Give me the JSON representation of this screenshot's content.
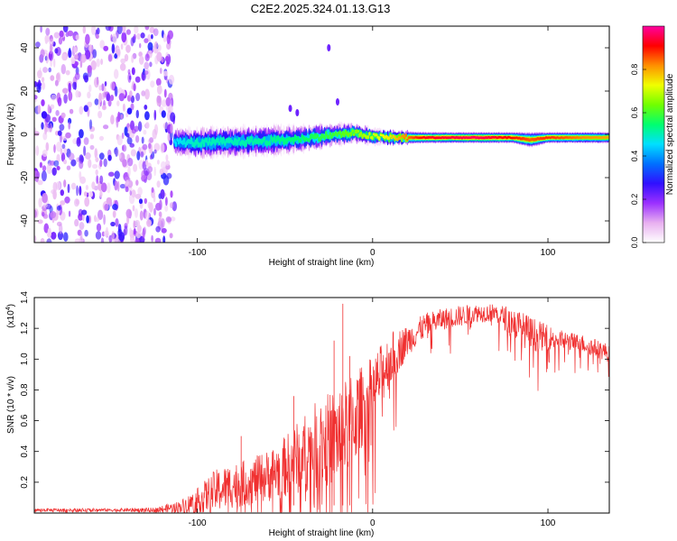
{
  "title": "C2E2.2025.324.01.13.G13",
  "chart_data": [
    {
      "type": "heatmap",
      "name": "spectrogram",
      "xlabel": "Height of straight line (km)",
      "ylabel": "Frequency (Hz)",
      "xlim": [
        -193,
        135
      ],
      "ylim": [
        -50,
        50
      ],
      "xticks": [
        -100,
        0,
        100
      ],
      "xtick_labels": [
        "-100",
        "0",
        "100"
      ],
      "yticks": [
        -40,
        -20,
        0,
        20,
        40
      ],
      "ytick_labels": [
        "-40",
        "-20",
        "0",
        "20",
        "40"
      ],
      "colorbar": {
        "label": "Normalized spectral amplitude",
        "range": [
          0,
          1
        ],
        "ticks": [
          0.0,
          0.2,
          0.4,
          0.6,
          0.8
        ],
        "tick_labels": [
          "0.0",
          "0.2",
          "0.4",
          "0.6",
          "0.8"
        ],
        "colors": [
          "#ffffff",
          "#e8b0f0",
          "#9b30ff",
          "#3010ff",
          "#0070ff",
          "#00e0ff",
          "#00ff70",
          "#70ff00",
          "#f0ff00",
          "#ff9000",
          "#ff0000",
          "#ff00a0"
        ]
      },
      "noise_region": {
        "x": [
          -193,
          -113
        ],
        "y": [
          -50,
          50
        ],
        "amplitude": [
          0.05,
          0.3
        ]
      },
      "signal_track": [
        {
          "x": -113,
          "f": -3.5,
          "width": 3.0,
          "amp": 0.45
        },
        {
          "x": -100,
          "f": -4.0,
          "width": 3.5,
          "amp": 0.5
        },
        {
          "x": -80,
          "f": -3.5,
          "width": 3.5,
          "amp": 0.5
        },
        {
          "x": -60,
          "f": -3.0,
          "width": 3.5,
          "amp": 0.52
        },
        {
          "x": -40,
          "f": -2.0,
          "width": 3.0,
          "amp": 0.55
        },
        {
          "x": -20,
          "f": 0.0,
          "width": 2.5,
          "amp": 0.6
        },
        {
          "x": -10,
          "f": 0.5,
          "width": 2.2,
          "amp": 0.65
        },
        {
          "x": 0,
          "f": -1.0,
          "width": 2.0,
          "amp": 0.7
        },
        {
          "x": 10,
          "f": -1.5,
          "width": 1.8,
          "amp": 0.75
        },
        {
          "x": 30,
          "f": -1.5,
          "width": 1.5,
          "amp": 0.92
        },
        {
          "x": 60,
          "f": -1.5,
          "width": 1.5,
          "amp": 0.96
        },
        {
          "x": 80,
          "f": -1.5,
          "width": 1.5,
          "amp": 0.9
        },
        {
          "x": 90,
          "f": -2.5,
          "width": 2.0,
          "amp": 0.85
        },
        {
          "x": 100,
          "f": -1.5,
          "width": 1.5,
          "amp": 0.88
        },
        {
          "x": 120,
          "f": -1.5,
          "width": 1.5,
          "amp": 0.82
        },
        {
          "x": 135,
          "f": -1.5,
          "width": 1.5,
          "amp": 0.8
        }
      ]
    },
    {
      "type": "line",
      "name": "snr",
      "xlabel": "Height of straight line (km)",
      "ylabel": "SNR (10 * v/v)",
      "exponent_label": "(x10",
      "exponent_power": "4",
      "exponent_close": ")",
      "xlim": [
        -193,
        135
      ],
      "ylim": [
        0,
        1.4
      ],
      "xticks": [
        -100,
        0,
        100
      ],
      "xtick_labels": [
        "-100",
        "0",
        "100"
      ],
      "yticks": [
        0.2,
        0.4,
        0.6,
        0.8,
        1.0,
        1.2,
        1.4
      ],
      "ytick_labels": [
        "0.2",
        "0.4",
        "0.6",
        "0.8",
        "1.0",
        "1.2",
        "1.4"
      ],
      "color": "#f03030",
      "series": [
        {
          "name": "SNR envelope",
          "x": [
            -193,
            -150,
            -125,
            -110,
            -100,
            -90,
            -80,
            -70,
            -60,
            -50,
            -40,
            -30,
            -20,
            -10,
            0,
            10,
            20,
            30,
            40,
            50,
            60,
            70,
            80,
            90,
            100,
            110,
            120,
            135
          ],
          "y": [
            0.02,
            0.02,
            0.02,
            0.04,
            0.08,
            0.14,
            0.18,
            0.2,
            0.24,
            0.3,
            0.38,
            0.45,
            0.5,
            0.62,
            0.8,
            1.0,
            1.12,
            1.22,
            1.26,
            1.28,
            1.3,
            1.3,
            1.24,
            1.16,
            1.14,
            1.12,
            1.1,
            1.04
          ],
          "jitter": [
            0.01,
            0.01,
            0.015,
            0.04,
            0.08,
            0.14,
            0.15,
            0.15,
            0.17,
            0.2,
            0.25,
            0.3,
            0.32,
            0.3,
            0.22,
            0.18,
            0.1,
            0.08,
            0.07,
            0.07,
            0.06,
            0.06,
            0.1,
            0.12,
            0.08,
            0.06,
            0.06,
            0.06
          ]
        }
      ],
      "peaks": [
        {
          "x": -17,
          "y": 1.36
        },
        {
          "x": -22,
          "y": 1.12
        },
        {
          "x": -13,
          "y": 1.02
        },
        {
          "x": -75,
          "y": 0.5
        },
        {
          "x": -45,
          "y": 0.76
        }
      ]
    }
  ]
}
